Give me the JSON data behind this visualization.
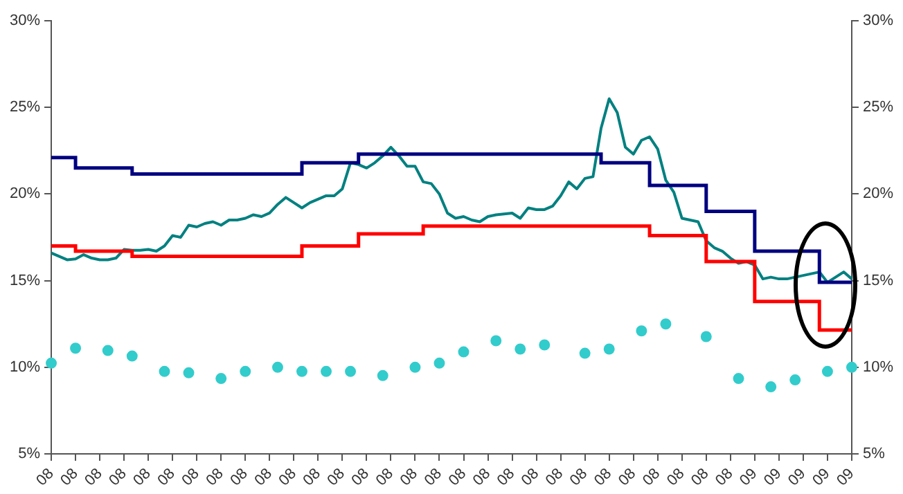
{
  "chart_data": {
    "type": "line",
    "categories": [
      "08",
      null,
      null,
      "08",
      null,
      null,
      "08",
      null,
      null,
      "08",
      null,
      null,
      "08",
      null,
      null,
      "08",
      null,
      null,
      "08",
      null,
      null,
      "08",
      null,
      null,
      "08",
      null,
      null,
      "08",
      null,
      null,
      "08",
      null,
      null,
      "08",
      null,
      null,
      "08",
      null,
      null,
      "08",
      null,
      null,
      "08",
      null,
      null,
      "08",
      null,
      null,
      "08",
      null,
      null,
      "08",
      null,
      null,
      "08",
      null,
      null,
      "08",
      null,
      null,
      "08",
      null,
      null,
      "08",
      null,
      null,
      "08",
      null,
      null,
      "08",
      null,
      null,
      "08",
      null,
      null,
      "08",
      null,
      null,
      "08",
      null,
      null,
      "08",
      null,
      null,
      "08",
      null,
      null,
      "09",
      null,
      null,
      "09",
      null,
      null,
      "09",
      null,
      null,
      "09",
      null,
      null,
      "09"
    ],
    "series": [
      {
        "type": "step",
        "color": "#000080",
        "values": [
          22.1,
          22.1,
          22.1,
          21.5,
          21.5,
          21.5,
          21.5,
          21.5,
          21.5,
          21.5,
          21.15,
          21.15,
          21.15,
          21.15,
          21.15,
          21.15,
          21.15,
          21.15,
          21.15,
          21.15,
          21.15,
          21.15,
          21.15,
          21.15,
          21.15,
          21.15,
          21.15,
          21.15,
          21.15,
          21.15,
          21.15,
          21.8,
          21.8,
          21.8,
          21.8,
          21.8,
          21.8,
          21.8,
          22.3,
          22.3,
          22.3,
          22.3,
          22.3,
          22.3,
          22.3,
          22.3,
          22.3,
          22.3,
          22.3,
          22.3,
          22.3,
          22.3,
          22.3,
          22.3,
          22.3,
          22.3,
          22.3,
          22.3,
          22.3,
          22.3,
          22.3,
          22.3,
          22.3,
          22.3,
          22.3,
          22.3,
          22.3,
          22.3,
          21.8,
          21.8,
          21.8,
          21.8,
          21.8,
          21.8,
          20.5,
          20.5,
          20.5,
          20.5,
          20.5,
          20.5,
          20.5,
          19.0,
          19.0,
          19.0,
          19.0,
          19.0,
          19.0,
          16.7,
          16.7,
          16.7,
          16.7,
          16.7,
          16.7,
          16.7,
          16.7,
          14.9,
          14.9,
          14.9,
          14.9,
          14.9
        ]
      },
      {
        "type": "step",
        "color": "#ff0000",
        "values": [
          17.0,
          17.0,
          17.0,
          16.7,
          16.7,
          16.7,
          16.7,
          16.7,
          16.7,
          16.7,
          16.4,
          16.4,
          16.4,
          16.4,
          16.4,
          16.4,
          16.4,
          16.4,
          16.4,
          16.4,
          16.4,
          16.4,
          16.4,
          16.4,
          16.4,
          16.4,
          16.4,
          16.4,
          16.4,
          16.4,
          16.4,
          17.0,
          17.0,
          17.0,
          17.0,
          17.0,
          17.0,
          17.0,
          17.7,
          17.7,
          17.7,
          17.7,
          17.7,
          17.7,
          17.7,
          17.7,
          18.15,
          18.15,
          18.15,
          18.15,
          18.15,
          18.15,
          18.15,
          18.15,
          18.15,
          18.15,
          18.15,
          18.15,
          18.15,
          18.15,
          18.15,
          18.15,
          18.15,
          18.15,
          18.15,
          18.15,
          18.15,
          18.15,
          18.15,
          18.15,
          18.15,
          18.15,
          18.15,
          18.15,
          17.6,
          17.6,
          17.6,
          17.6,
          17.6,
          17.6,
          17.6,
          16.1,
          16.1,
          16.1,
          16.1,
          16.1,
          16.1,
          13.8,
          13.8,
          13.8,
          13.8,
          13.8,
          13.8,
          13.8,
          13.8,
          12.15,
          12.15,
          12.15,
          12.15,
          12.15
        ]
      },
      {
        "type": "line",
        "color": "#008080",
        "values": [
          16.6,
          16.4,
          16.2,
          16.25,
          16.5,
          16.3,
          16.2,
          16.2,
          16.3,
          16.8,
          16.75,
          16.75,
          16.8,
          16.7,
          17.0,
          17.6,
          17.5,
          18.2,
          18.1,
          18.3,
          18.4,
          18.2,
          18.5,
          18.5,
          18.6,
          18.8,
          18.7,
          18.9,
          19.4,
          19.8,
          19.5,
          19.2,
          19.5,
          19.7,
          19.9,
          19.9,
          20.3,
          21.8,
          21.7,
          21.5,
          21.8,
          22.2,
          22.7,
          22.2,
          21.6,
          21.6,
          20.7,
          20.6,
          20.0,
          18.9,
          18.6,
          18.7,
          18.5,
          18.4,
          18.7,
          18.8,
          18.85,
          18.9,
          18.6,
          19.2,
          19.1,
          19.1,
          19.3,
          19.9,
          20.7,
          20.3,
          20.9,
          21.0,
          23.8,
          25.5,
          24.7,
          22.7,
          22.3,
          23.1,
          23.3,
          22.6,
          20.8,
          20.1,
          18.6,
          18.5,
          18.4,
          17.3,
          16.9,
          16.7,
          16.3,
          16.0,
          16.1,
          15.9,
          15.1,
          15.2,
          15.1,
          15.1,
          15.2,
          15.3,
          15.4,
          15.5,
          14.9,
          15.2,
          15.5,
          15.1
        ]
      },
      {
        "type": "scatter",
        "color": "#33cccc",
        "marker": "circle",
        "values": [
          10.24,
          null,
          null,
          11.1,
          null,
          null,
          null,
          10.97,
          null,
          null,
          10.65,
          null,
          null,
          null,
          9.76,
          null,
          null,
          9.68,
          null,
          null,
          null,
          9.35,
          null,
          null,
          9.76,
          null,
          null,
          null,
          10.0,
          null,
          null,
          9.76,
          null,
          null,
          9.76,
          null,
          null,
          9.76,
          null,
          null,
          null,
          9.52,
          null,
          null,
          null,
          10.0,
          null,
          null,
          10.24,
          null,
          null,
          10.89,
          null,
          null,
          null,
          11.53,
          null,
          null,
          11.05,
          null,
          null,
          11.29,
          null,
          null,
          null,
          null,
          10.81,
          null,
          null,
          11.05,
          null,
          null,
          null,
          12.1,
          null,
          null,
          12.5,
          null,
          null,
          null,
          null,
          11.77,
          null,
          null,
          null,
          9.35,
          null,
          null,
          null,
          8.87,
          null,
          null,
          9.27,
          null,
          null,
          null,
          9.76,
          null,
          null,
          10.0
        ]
      }
    ],
    "ylim": [
      5,
      30
    ],
    "yticks": [
      {
        "value": 5,
        "label": "5%"
      },
      {
        "value": 10,
        "label": "10%"
      },
      {
        "value": 15,
        "label": "15%"
      },
      {
        "value": 20,
        "label": "20%"
      },
      {
        "value": 25,
        "label": "25%"
      },
      {
        "value": 30,
        "label": "30%"
      }
    ],
    "y2lim": [
      5,
      30
    ],
    "y2ticks": [
      {
        "value": 5,
        "label": "5%"
      },
      {
        "value": 10,
        "label": "10%"
      },
      {
        "value": 15,
        "label": "15%"
      },
      {
        "value": 20,
        "label": "20%"
      },
      {
        "value": 25,
        "label": "25%"
      },
      {
        "value": 30,
        "label": "30%"
      }
    ],
    "grid": false,
    "legend": false
  }
}
